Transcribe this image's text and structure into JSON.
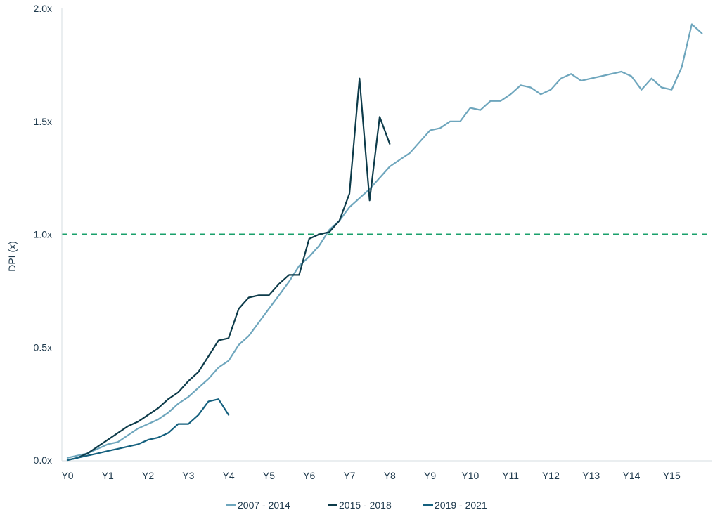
{
  "chart_data": {
    "type": "line",
    "title": "",
    "xlabel": "",
    "ylabel": "DPI (x)",
    "ylim": [
      0,
      2.0
    ],
    "xlim": [
      0,
      15.85
    ],
    "grid": false,
    "legend_position": "bottom",
    "x_tick_labels": [
      "Y0",
      "Y1",
      "Y2",
      "Y3",
      "Y4",
      "Y5",
      "Y6",
      "Y7",
      "Y8",
      "Y9",
      "Y10",
      "Y11",
      "Y12",
      "Y13",
      "Y14",
      "Y15"
    ],
    "y_tick_labels": [
      "0.0x",
      "0.5x",
      "1.0x",
      "1.5x",
      "2.0x"
    ],
    "y_ticks": [
      0,
      0.5,
      1.0,
      1.5,
      2.0
    ],
    "reference_line": {
      "y": 1.0,
      "color": "#1aa06b",
      "style": "dashed"
    },
    "series": [
      {
        "name": "2007 - 2014",
        "color": "#6ea6bd",
        "x": [
          0,
          0.25,
          0.5,
          0.75,
          1,
          1.25,
          1.5,
          1.75,
          2,
          2.25,
          2.5,
          2.75,
          3,
          3.25,
          3.5,
          3.75,
          4,
          4.25,
          4.5,
          4.75,
          5,
          5.25,
          5.5,
          5.75,
          6,
          6.25,
          6.5,
          6.75,
          7,
          7.25,
          7.5,
          7.75,
          8,
          8.25,
          8.5,
          8.75,
          9,
          9.25,
          9.5,
          9.75,
          10,
          10.25,
          10.5,
          10.75,
          11,
          11.25,
          11.5,
          11.75,
          12,
          12.25,
          12.5,
          12.75,
          13,
          13.25,
          13.5,
          13.75,
          14,
          14.25,
          14.5,
          14.75,
          15,
          15.25,
          15.5,
          15.75
        ],
        "values": [
          0.01,
          0.02,
          0.03,
          0.05,
          0.07,
          0.08,
          0.11,
          0.14,
          0.16,
          0.18,
          0.21,
          0.25,
          0.28,
          0.32,
          0.36,
          0.41,
          0.44,
          0.51,
          0.55,
          0.61,
          0.67,
          0.73,
          0.79,
          0.86,
          0.9,
          0.95,
          1.02,
          1.06,
          1.12,
          1.16,
          1.2,
          1.25,
          1.3,
          1.33,
          1.36,
          1.41,
          1.46,
          1.47,
          1.5,
          1.5,
          1.56,
          1.55,
          1.59,
          1.59,
          1.62,
          1.66,
          1.65,
          1.62,
          1.64,
          1.69,
          1.71,
          1.68,
          1.69,
          1.7,
          1.71,
          1.72,
          1.7,
          1.64,
          1.69,
          1.65,
          1.64,
          1.74,
          1.93,
          1.89
        ]
      },
      {
        "name": "2015 - 2018",
        "color": "#0d3b4a",
        "x": [
          0,
          0.25,
          0.5,
          0.75,
          1,
          1.25,
          1.5,
          1.75,
          2,
          2.25,
          2.5,
          2.75,
          3,
          3.25,
          3.5,
          3.75,
          4,
          4.25,
          4.5,
          4.75,
          5,
          5.25,
          5.5,
          5.75,
          6,
          6.25,
          6.5,
          6.75,
          7,
          7.25,
          7.5,
          7.75,
          8
        ],
        "values": [
          0.0,
          0.01,
          0.03,
          0.06,
          0.09,
          0.12,
          0.15,
          0.17,
          0.2,
          0.23,
          0.27,
          0.3,
          0.35,
          0.39,
          0.46,
          0.53,
          0.54,
          0.67,
          0.72,
          0.73,
          0.73,
          0.78,
          0.82,
          0.82,
          0.98,
          1.0,
          1.01,
          1.06,
          1.18,
          1.69,
          1.15,
          1.52,
          1.4
        ]
      },
      {
        "name": "2019 - 2021",
        "color": "#14607e",
        "x": [
          0,
          0.25,
          0.5,
          0.75,
          1,
          1.25,
          1.5,
          1.75,
          2,
          2.25,
          2.5,
          2.75,
          3,
          3.25,
          3.5,
          3.75,
          4
        ],
        "values": [
          0.0,
          0.01,
          0.02,
          0.03,
          0.04,
          0.05,
          0.06,
          0.07,
          0.09,
          0.1,
          0.12,
          0.16,
          0.16,
          0.2,
          0.26,
          0.27,
          0.2
        ]
      }
    ]
  }
}
